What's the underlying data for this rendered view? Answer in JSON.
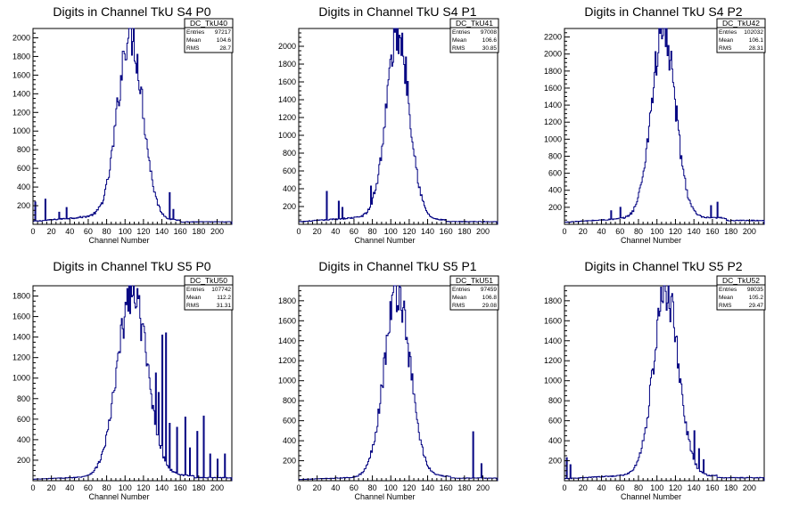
{
  "colors": {
    "line": "#000080",
    "axis": "#000000",
    "background": "#ffffff"
  },
  "chart_data": [
    {
      "type": "histogram",
      "title": "Digits in Channel TkU S4 P0",
      "xlabel": "Channel Number",
      "xlim": [
        0,
        216
      ],
      "ylim": [
        0,
        2100
      ],
      "xticks": [
        0,
        20,
        40,
        60,
        80,
        100,
        120,
        140,
        160,
        180,
        200
      ],
      "yticks": [
        200,
        400,
        600,
        800,
        1000,
        1200,
        1400,
        1600,
        1800,
        2000
      ],
      "stats": {
        "name": "DC_TkU40",
        "rows": [
          {
            "label": "Entries",
            "value": "97217"
          },
          {
            "label": "Mean",
            "value": "104.6"
          },
          {
            "label": "RMS",
            "value": "28.7"
          }
        ]
      },
      "peak": {
        "center": 106,
        "height": 1990,
        "sigma": 13.5
      },
      "background": {
        "left": 90,
        "right": 35,
        "tail": 160
      },
      "spikes": [
        {
          "x": 2,
          "y": 240
        },
        {
          "x": 13,
          "y": 270
        },
        {
          "x": 28,
          "y": 130
        },
        {
          "x": 36,
          "y": 180
        },
        {
          "x": 148,
          "y": 340
        },
        {
          "x": 152,
          "y": 160
        }
      ]
    },
    {
      "type": "histogram",
      "title": "Digits in Channel TkU S4 P1",
      "xlabel": "Channel Number",
      "xlim": [
        0,
        216
      ],
      "ylim": [
        0,
        2200
      ],
      "xticks": [
        0,
        20,
        40,
        60,
        80,
        100,
        120,
        140,
        160,
        180,
        200
      ],
      "yticks": [
        200,
        400,
        600,
        800,
        1000,
        1200,
        1400,
        1600,
        1800,
        2000
      ],
      "stats": {
        "name": "DC_TkU41",
        "rows": [
          {
            "label": "Entries",
            "value": "97008"
          },
          {
            "label": "Mean",
            "value": "106.6"
          },
          {
            "label": "RMS",
            "value": "30.85"
          }
        ]
      },
      "peak": {
        "center": 108,
        "height": 2080,
        "sigma": 12.5
      },
      "background": {
        "left": 80,
        "right": 40,
        "tail": 160
      },
      "spikes": [
        {
          "x": 30,
          "y": 370
        },
        {
          "x": 43,
          "y": 260
        },
        {
          "x": 47,
          "y": 190
        },
        {
          "x": 78,
          "y": 430
        },
        {
          "x": 81,
          "y": 360
        }
      ]
    },
    {
      "type": "histogram",
      "title": "Digits in Channel TkU S4 P2",
      "xlabel": "Channel Number",
      "xlim": [
        0,
        216
      ],
      "ylim": [
        0,
        2300
      ],
      "xticks": [
        0,
        20,
        40,
        60,
        80,
        100,
        120,
        140,
        160,
        180,
        200
      ],
      "yticks": [
        200,
        400,
        600,
        800,
        1000,
        1200,
        1400,
        1600,
        1800,
        2000,
        2200
      ],
      "stats": {
        "name": "DC_TkU42",
        "rows": [
          {
            "label": "Entries",
            "value": "102032"
          },
          {
            "label": "Mean",
            "value": "106.1"
          },
          {
            "label": "RMS",
            "value": "28.31"
          }
        ]
      },
      "peak": {
        "center": 107,
        "height": 2180,
        "sigma": 13
      },
      "background": {
        "left": 70,
        "right": 60,
        "tail": 175
      },
      "spikes": [
        {
          "x": 50,
          "y": 160
        },
        {
          "x": 60,
          "y": 200
        },
        {
          "x": 158,
          "y": 220
        },
        {
          "x": 165,
          "y": 260
        }
      ]
    },
    {
      "type": "histogram",
      "title": "Digits in Channel TkU S5 P0",
      "xlabel": "Channel Number",
      "xlim": [
        0,
        216
      ],
      "ylim": [
        0,
        1900
      ],
      "xticks": [
        0,
        20,
        40,
        60,
        80,
        100,
        120,
        140,
        160,
        180,
        200
      ],
      "yticks": [
        200,
        400,
        600,
        800,
        1000,
        1200,
        1400,
        1600,
        1800
      ],
      "stats": {
        "name": "DC_TkU50",
        "rows": [
          {
            "label": "Entries",
            "value": "107742"
          },
          {
            "label": "Mean",
            "value": "112.2"
          },
          {
            "label": "RMS",
            "value": "31.31"
          }
        ]
      },
      "peak": {
        "center": 108,
        "height": 1790,
        "sigma": 16
      },
      "background": {
        "left": 40,
        "right": 40,
        "tail": 175
      },
      "spikes": [
        {
          "x": 133,
          "y": 1050
        },
        {
          "x": 136,
          "y": 860
        },
        {
          "x": 140,
          "y": 1420
        },
        {
          "x": 144,
          "y": 1440
        },
        {
          "x": 148,
          "y": 560
        },
        {
          "x": 156,
          "y": 520
        },
        {
          "x": 165,
          "y": 620
        },
        {
          "x": 170,
          "y": 320
        },
        {
          "x": 178,
          "y": 480
        },
        {
          "x": 185,
          "y": 630
        },
        {
          "x": 192,
          "y": 260
        },
        {
          "x": 200,
          "y": 210
        },
        {
          "x": 208,
          "y": 260
        }
      ]
    },
    {
      "type": "histogram",
      "title": "Digits in Channel TkU S5 P1",
      "xlabel": "Channel Number",
      "xlim": [
        0,
        216
      ],
      "ylim": [
        0,
        1950
      ],
      "xticks": [
        0,
        20,
        40,
        60,
        80,
        100,
        120,
        140,
        160,
        180,
        200
      ],
      "yticks": [
        200,
        400,
        600,
        800,
        1000,
        1200,
        1400,
        1600,
        1800
      ],
      "stats": {
        "name": "DC_TkU51",
        "rows": [
          {
            "label": "Entries",
            "value": "97459"
          },
          {
            "label": "Mean",
            "value": "106.8"
          },
          {
            "label": "RMS",
            "value": "29.08"
          }
        ]
      },
      "peak": {
        "center": 107,
        "height": 1860,
        "sigma": 14
      },
      "background": {
        "left": 35,
        "right": 35,
        "tail": 165
      },
      "spikes": [
        {
          "x": 189,
          "y": 490
        },
        {
          "x": 198,
          "y": 170
        }
      ]
    },
    {
      "type": "histogram",
      "title": "Digits in Channel TkU S5 P2",
      "xlabel": "Channel Number",
      "xlim": [
        0,
        216
      ],
      "ylim": [
        0,
        1950
      ],
      "xticks": [
        0,
        20,
        40,
        60,
        80,
        100,
        120,
        140,
        160,
        180,
        200
      ],
      "yticks": [
        200,
        400,
        600,
        800,
        1000,
        1200,
        1400,
        1600,
        1800
      ],
      "stats": {
        "name": "DC_TkU52",
        "rows": [
          {
            "label": "Entries",
            "value": "98035"
          },
          {
            "label": "Mean",
            "value": "105.2"
          },
          {
            "label": "RMS",
            "value": "29.47"
          }
        ]
      },
      "peak": {
        "center": 110,
        "height": 1840,
        "sigma": 13.5
      },
      "background": {
        "left": 55,
        "right": 40,
        "tail": 165
      },
      "spikes": [
        {
          "x": 2,
          "y": 230
        },
        {
          "x": 6,
          "y": 160
        },
        {
          "x": 140,
          "y": 500
        },
        {
          "x": 145,
          "y": 320
        },
        {
          "x": 150,
          "y": 210
        }
      ]
    }
  ]
}
